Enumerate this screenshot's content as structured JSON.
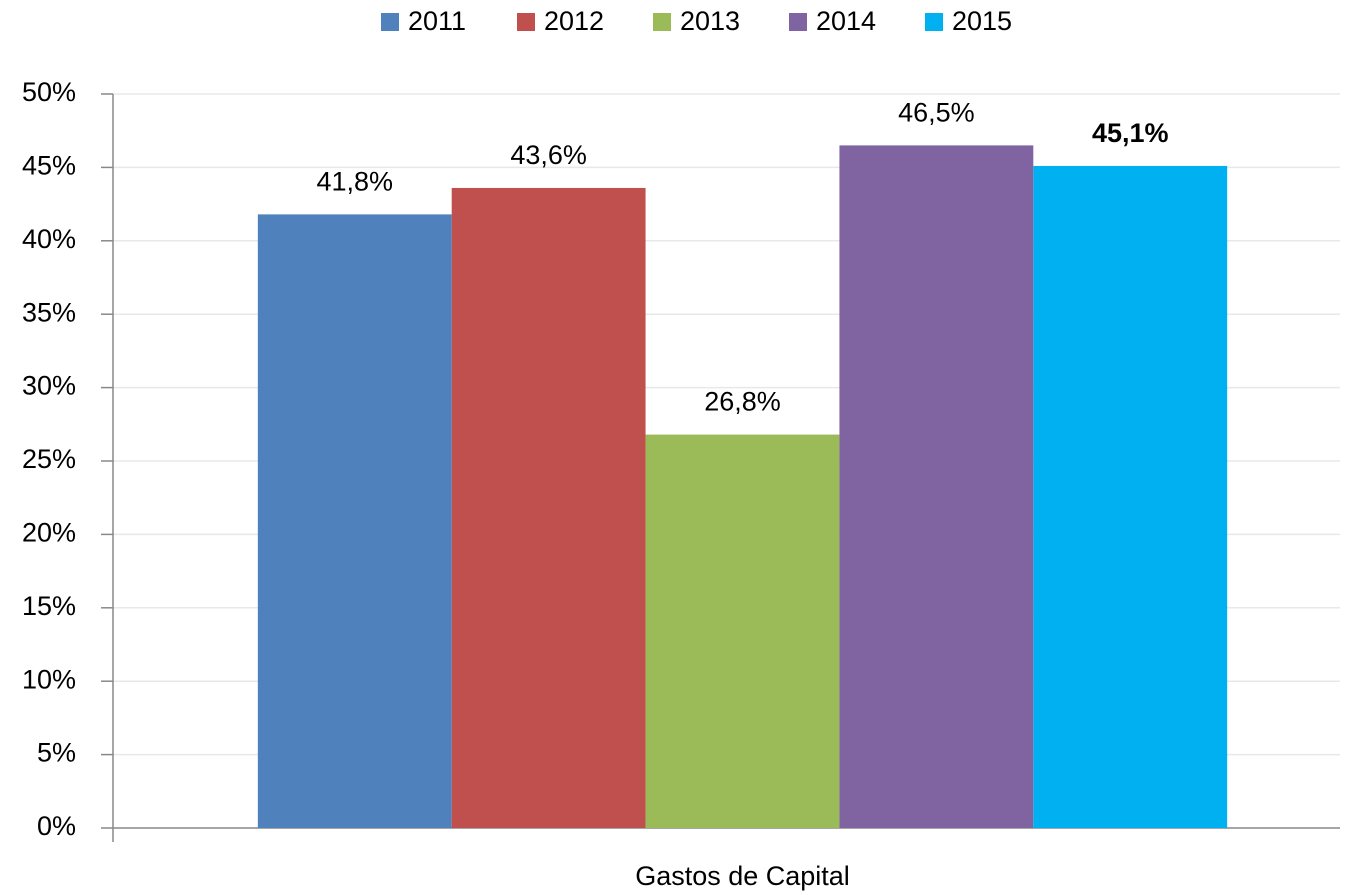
{
  "chart_data": {
    "type": "bar",
    "categories": [
      "Gastos de Capital"
    ],
    "series": [
      {
        "name": "2011",
        "color": "#4f81bd",
        "values": [
          41.8
        ],
        "value_labels": [
          "41,8%"
        ]
      },
      {
        "name": "2012",
        "color": "#c0504d",
        "values": [
          43.6
        ],
        "value_labels": [
          "43,6%"
        ]
      },
      {
        "name": "2013",
        "color": "#9bbb59",
        "values": [
          26.8
        ],
        "value_labels": [
          "26,8%"
        ]
      },
      {
        "name": "2014",
        "color": "#8064a2",
        "values": [
          46.5
        ],
        "value_labels": [
          "46,5%"
        ]
      },
      {
        "name": "2015",
        "color": "#00b0f0",
        "values": [
          45.1
        ],
        "value_labels": [
          "45,1%"
        ],
        "label_bold": true
      }
    ],
    "ylim": [
      0,
      50
    ],
    "yticks": [
      {
        "value": 0,
        "label": "0%"
      },
      {
        "value": 5,
        "label": "5%"
      },
      {
        "value": 10,
        "label": "10%"
      },
      {
        "value": 15,
        "label": "15%"
      },
      {
        "value": 20,
        "label": "20%"
      },
      {
        "value": 25,
        "label": "25%"
      },
      {
        "value": 30,
        "label": "30%"
      },
      {
        "value": 35,
        "label": "35%"
      },
      {
        "value": 40,
        "label": "40%"
      },
      {
        "value": 45,
        "label": "45%"
      },
      {
        "value": 50,
        "label": "50%"
      }
    ],
    "grid": true,
    "legend": "top"
  }
}
